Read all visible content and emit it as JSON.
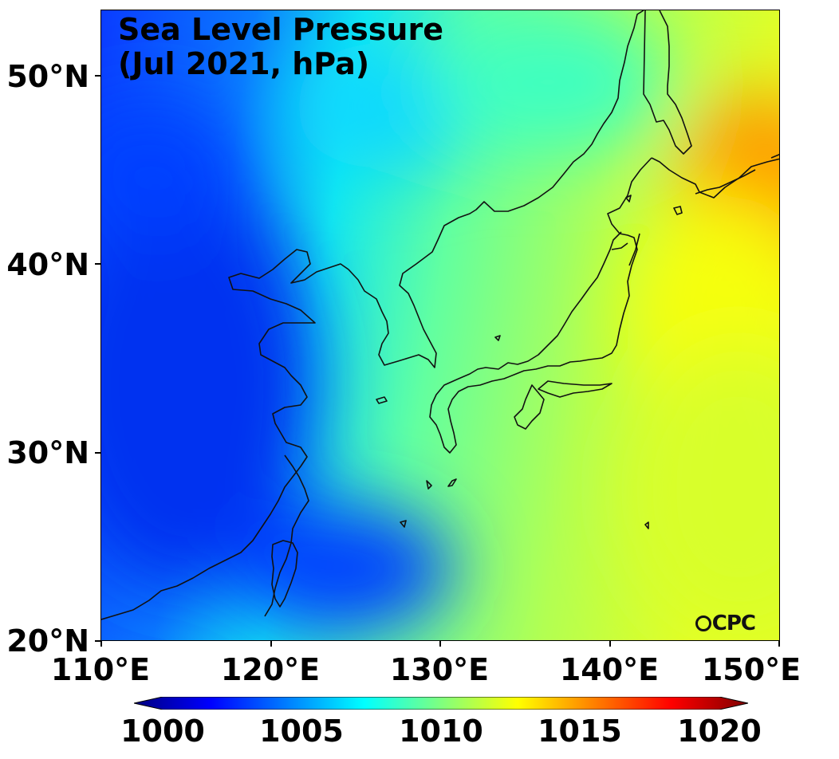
{
  "title": "Sea Level Pressure\n(Jul 2021, hPa)",
  "logo_text": "CPC",
  "map": {
    "lon_range": [
      110,
      150
    ],
    "lat_range": [
      20,
      53.5
    ],
    "variable": "Sea Level Pressure",
    "units": "hPa",
    "period": "Jul 2021",
    "colormap": "jet",
    "low_centers": [
      {
        "lon": 115,
        "lat": 31.5,
        "value": 1003
      },
      {
        "lon": 112,
        "lat": 45.5,
        "value": 1004
      },
      {
        "lon": 124,
        "lat": 23,
        "value": 1005
      }
    ],
    "high_center": {
      "lon": 150,
      "lat": 43.5,
      "value": 1014.5
    }
  },
  "axes": {
    "y_ticks": [
      {
        "label": "50°N",
        "lat": 50
      },
      {
        "label": "40°N",
        "lat": 40
      },
      {
        "label": "30°N",
        "lat": 30
      },
      {
        "label": "20°N",
        "lat": 20
      }
    ],
    "x_ticks": [
      {
        "label": "110°E",
        "lon": 110
      },
      {
        "label": "120°E",
        "lon": 120
      },
      {
        "label": "130°E",
        "lon": 130
      },
      {
        "label": "140°E",
        "lon": 140
      },
      {
        "label": "150°E",
        "lon": 150
      }
    ]
  },
  "colorbar": {
    "min": 1000,
    "max": 1020,
    "extend": "both",
    "ticks": [
      {
        "label": "1000",
        "value": 1000
      },
      {
        "label": "1005",
        "value": 1005
      },
      {
        "label": "1010",
        "value": 1010
      },
      {
        "label": "1015",
        "value": 1015
      },
      {
        "label": "1020",
        "value": 1020
      }
    ],
    "colors": [
      "#00007f",
      "#0000ff",
      "#007fff",
      "#00ffff",
      "#7fff7f",
      "#ffff00",
      "#ff7f00",
      "#ff0000",
      "#7f0000"
    ]
  }
}
